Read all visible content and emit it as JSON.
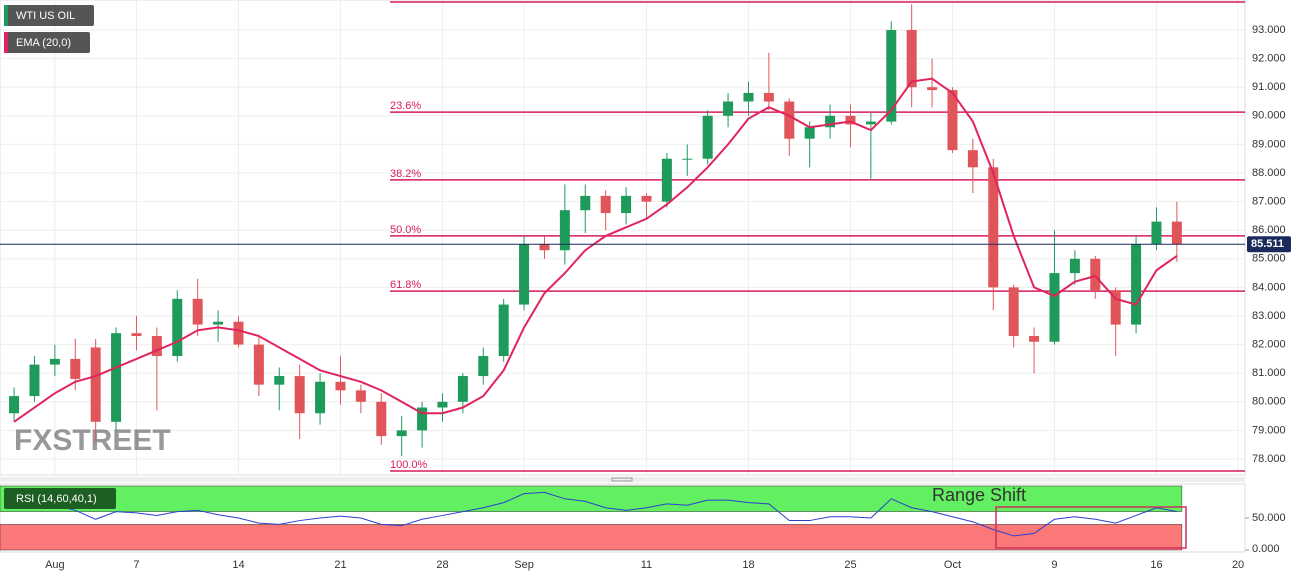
{
  "chart_data": [
    {
      "type": "candlestick",
      "title": "WTI US OIL",
      "watermark": "FXSTREET",
      "grid": true,
      "categories": [
        null,
        null,
        "Aug",
        null,
        null,
        null,
        "7",
        null,
        null,
        null,
        null,
        "14",
        null,
        null,
        null,
        null,
        "21",
        null,
        null,
        null,
        null,
        "28",
        null,
        null,
        null,
        "Sep",
        null,
        null,
        null,
        null,
        null,
        "11",
        null,
        null,
        null,
        null,
        "18",
        null,
        null,
        null,
        null,
        "25",
        null,
        null,
        null,
        null,
        "Oct",
        null,
        null,
        null,
        null,
        "9",
        null,
        null,
        null,
        null,
        "16",
        null,
        null,
        null,
        "20"
      ],
      "ylim": [
        77.44,
        94.05
      ],
      "yticks": [
        {
          "value": 93,
          "label": "93.000"
        },
        {
          "value": 92,
          "label": "92.000"
        },
        {
          "value": 91,
          "label": "91.000"
        },
        {
          "value": 90,
          "label": "90.000"
        },
        {
          "value": 89,
          "label": "89.000"
        },
        {
          "value": 88,
          "label": "88.000"
        },
        {
          "value": 87,
          "label": "87.000"
        },
        {
          "value": 86,
          "label": "86.000"
        },
        {
          "value": 85,
          "label": "85.000"
        },
        {
          "value": 84,
          "label": "84.000"
        },
        {
          "value": 83,
          "label": "83.000"
        },
        {
          "value": 82,
          "label": "82.000"
        },
        {
          "value": 81,
          "label": "81.000"
        },
        {
          "value": 80,
          "label": "80.000"
        },
        {
          "value": 79,
          "label": "79.000"
        },
        {
          "value": 78,
          "label": "78.000"
        }
      ],
      "last_price": 85.511,
      "series": [
        {
          "name": "WTI US OIL",
          "type": "candlestick",
          "up_color": "#1e9b5a",
          "down_color": "#e0555a",
          "open": [
            79.6,
            80.2,
            81.3,
            81.5,
            81.9,
            79.3,
            82.4,
            82.3,
            81.6,
            83.6,
            82.7,
            82.8,
            82.0,
            80.6,
            80.9,
            79.6,
            80.7,
            80.4,
            80.0,
            78.8,
            79.0,
            79.8,
            80.0,
            80.9,
            81.6,
            83.4,
            85.5,
            85.3,
            86.7,
            87.2,
            86.6,
            87.2,
            87.0,
            88.5,
            88.5,
            90.0,
            90.5,
            90.8,
            90.5,
            89.2,
            89.6,
            90.0,
            89.7,
            89.8,
            93.0,
            91.0,
            90.9,
            88.8,
            88.2,
            84.0,
            82.3,
            82.1,
            84.5,
            85.0,
            83.9,
            82.7,
            85.5,
            86.3,
            null,
            null,
            null
          ],
          "high": [
            80.5,
            81.6,
            82.0,
            82.2,
            82.2,
            82.6,
            83.0,
            82.6,
            83.9,
            84.3,
            83.2,
            83.0,
            82.3,
            81.2,
            81.3,
            81.0,
            81.6,
            80.6,
            80.3,
            79.5,
            80.0,
            80.3,
            81.0,
            81.9,
            83.6,
            85.8,
            85.8,
            87.6,
            87.6,
            87.4,
            87.5,
            87.3,
            88.7,
            89.0,
            90.2,
            90.8,
            91.2,
            92.2,
            90.6,
            89.8,
            90.4,
            90.4,
            90.1,
            93.3,
            93.9,
            92.0,
            91.0,
            89.2,
            88.5,
            84.1,
            82.6,
            86.0,
            85.3,
            85.1,
            84.0,
            85.8,
            86.8,
            87.0,
            null,
            null,
            null
          ],
          "low": [
            79.3,
            80.0,
            80.9,
            80.4,
            78.6,
            79.0,
            81.8,
            79.7,
            81.4,
            82.3,
            82.1,
            81.9,
            80.2,
            79.7,
            78.7,
            79.2,
            79.9,
            79.6,
            78.5,
            78.1,
            78.4,
            79.3,
            79.6,
            80.6,
            81.4,
            83.2,
            85.0,
            84.8,
            85.9,
            86.0,
            86.2,
            86.4,
            86.8,
            87.9,
            88.3,
            89.6,
            90.0,
            90.2,
            88.6,
            88.2,
            89.2,
            88.9,
            87.8,
            89.7,
            90.3,
            90.3,
            88.7,
            87.3,
            83.2,
            81.9,
            81.0,
            82.0,
            84.1,
            83.6,
            81.6,
            82.4,
            85.3,
            84.9,
            null,
            null,
            null
          ],
          "close": [
            80.2,
            81.3,
            81.5,
            80.8,
            79.3,
            82.4,
            82.3,
            81.6,
            83.6,
            82.7,
            82.8,
            82.0,
            80.6,
            80.9,
            79.6,
            80.7,
            80.4,
            80.0,
            78.8,
            79.0,
            79.8,
            80.0,
            80.9,
            81.6,
            83.4,
            85.5,
            85.3,
            86.7,
            87.2,
            86.6,
            87.2,
            87.0,
            88.5,
            88.5,
            90.0,
            90.5,
            90.8,
            90.5,
            89.2,
            89.6,
            90.0,
            89.7,
            89.8,
            93.0,
            91.0,
            90.9,
            88.8,
            88.2,
            84.0,
            82.3,
            82.1,
            84.5,
            85.0,
            83.9,
            82.7,
            85.5,
            86.3,
            85.5,
            null,
            null,
            null
          ]
        },
        {
          "name": "EMA (20,0)",
          "type": "line",
          "color": "#e0245e",
          "values": [
            79.3,
            79.8,
            80.3,
            80.7,
            80.9,
            81.2,
            81.5,
            81.8,
            82.1,
            82.5,
            82.6,
            82.5,
            82.3,
            81.9,
            81.5,
            81.1,
            80.9,
            80.7,
            80.4,
            80.0,
            79.6,
            79.6,
            79.8,
            80.2,
            81.1,
            82.6,
            83.8,
            84.5,
            85.3,
            85.8,
            86.1,
            86.4,
            86.9,
            87.5,
            88.2,
            89.0,
            89.9,
            90.3,
            90.0,
            89.6,
            89.7,
            89.8,
            89.5,
            90.2,
            91.2,
            91.3,
            90.8,
            89.8,
            88.0,
            85.8,
            84.0,
            83.7,
            84.2,
            84.4,
            83.6,
            83.4,
            84.6,
            85.1,
            null,
            null,
            null
          ]
        }
      ],
      "fib_levels": [
        {
          "value": 93.98
        },
        {
          "value": 90.13,
          "label": "23.6%"
        },
        {
          "value": 87.76,
          "label": "38.2%"
        },
        {
          "value": 85.8,
          "label": "50.0%"
        },
        {
          "value": 83.87,
          "label": "61.8%"
        },
        {
          "value": 77.58,
          "label": "100.0%"
        }
      ],
      "fib_color": "#d81b60"
    },
    {
      "type": "line",
      "title": "RSI (14,60,40,1)",
      "color": "#2a3fd0",
      "annotation": "Range Shift",
      "ylim": [
        0,
        100
      ],
      "yticks": [
        {
          "value": 50,
          "label": "50.000"
        },
        {
          "value": 0,
          "label": "0.000"
        }
      ],
      "zones": [
        {
          "from": 60,
          "to": 100,
          "color": "#62f062"
        },
        {
          "from": 0,
          "to": 40,
          "color": "#fa7878"
        }
      ],
      "values": [
        67,
        72,
        70,
        62,
        48,
        60,
        58,
        54,
        60,
        62,
        55,
        50,
        42,
        40,
        46,
        50,
        53,
        50,
        40,
        38,
        48,
        54,
        60,
        66,
        74,
        88,
        90,
        80,
        76,
        66,
        62,
        66,
        72,
        70,
        78,
        78,
        74,
        72,
        46,
        46,
        52,
        52,
        50,
        80,
        66,
        60,
        52,
        44,
        32,
        22,
        26,
        48,
        52,
        48,
        42,
        54,
        66,
        60,
        null,
        null,
        null
      ]
    }
  ]
}
